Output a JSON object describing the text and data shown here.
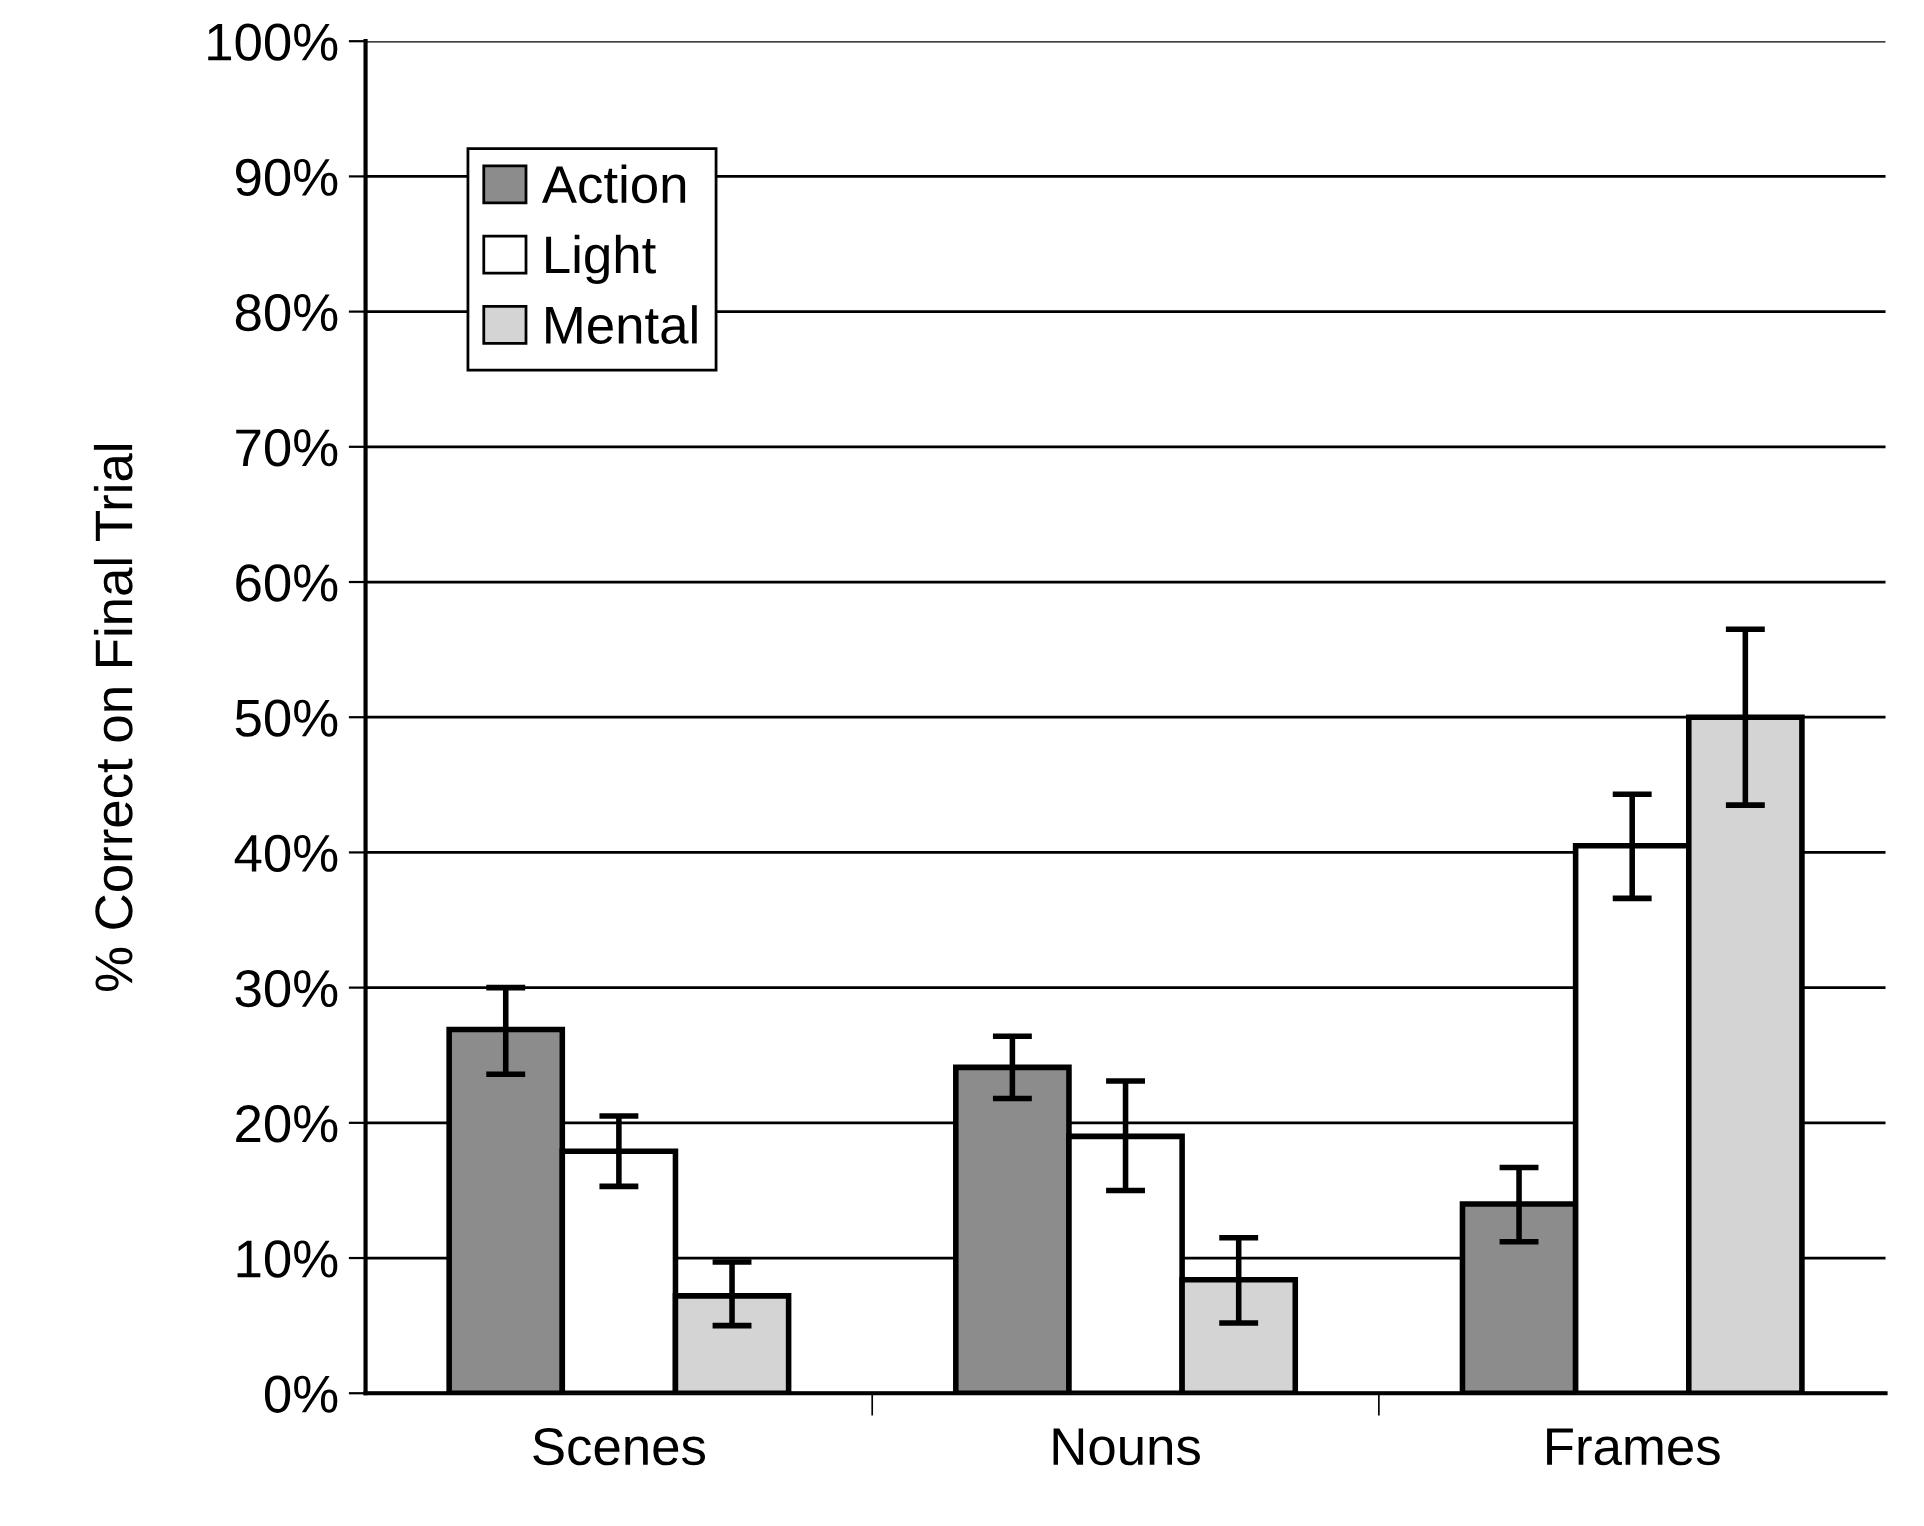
{
  "chart_data": {
    "type": "bar",
    "ylabel": "% Correct on Final Trial",
    "categories": [
      "Scenes",
      "Nouns",
      "Frames"
    ],
    "series": [
      {
        "name": "Action",
        "color": "#8c8c8c",
        "values": [
          26.9,
          24.1,
          14.0
        ],
        "errors": [
          [
            23.6,
            30.0
          ],
          [
            21.8,
            26.4
          ],
          [
            11.2,
            16.7
          ]
        ]
      },
      {
        "name": "Light",
        "color": "#ffffff",
        "values": [
          17.9,
          19.0,
          40.5
        ],
        "errors": [
          [
            15.3,
            20.5
          ],
          [
            15.0,
            23.1
          ],
          [
            36.6,
            44.3
          ]
        ]
      },
      {
        "name": "Mental",
        "color": "#d4d4d4",
        "values": [
          7.2,
          8.4,
          50.0
        ],
        "errors": [
          [
            5.0,
            9.7
          ],
          [
            5.2,
            11.5
          ],
          [
            43.5,
            56.5
          ]
        ]
      }
    ],
    "ylim": [
      0,
      100
    ],
    "yticks": [
      {
        "value": 0,
        "label": "0%"
      },
      {
        "value": 10,
        "label": "10%"
      },
      {
        "value": 20,
        "label": "20%"
      },
      {
        "value": 30,
        "label": "30%"
      },
      {
        "value": 40,
        "label": "40%"
      },
      {
        "value": 50,
        "label": "50%"
      },
      {
        "value": 60,
        "label": "60%"
      },
      {
        "value": 70,
        "label": "70%"
      },
      {
        "value": 80,
        "label": "80%"
      },
      {
        "value": 90,
        "label": "90%"
      },
      {
        "value": 100,
        "label": "100%"
      }
    ],
    "grid": "y",
    "legend": "top left"
  }
}
